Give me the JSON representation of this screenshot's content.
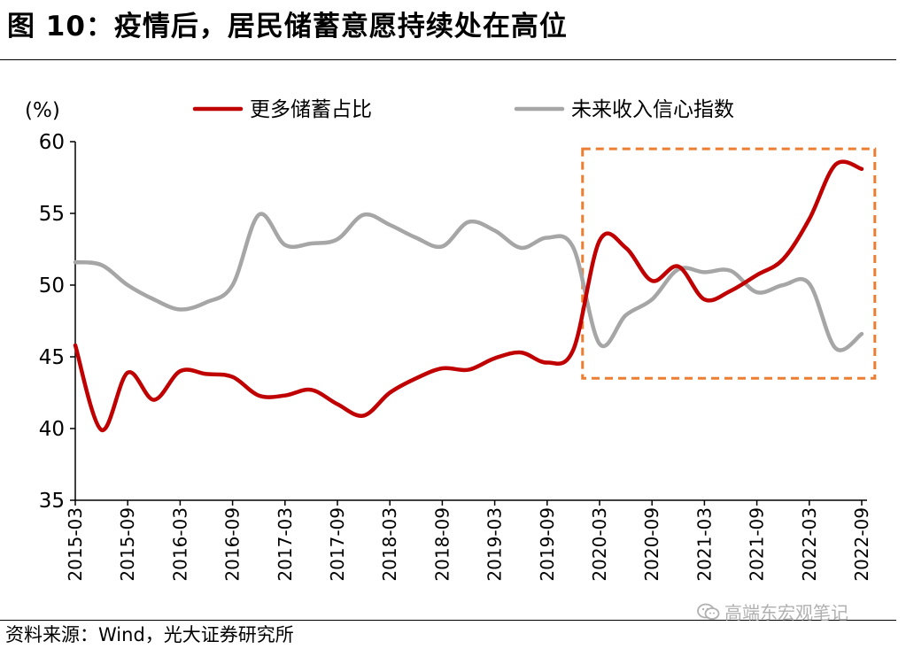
{
  "header": {
    "title": "图 10：疫情后，居民储蓄意愿持续处在高位"
  },
  "footer": {
    "source": "资料来源：Wind，光大证券研究所",
    "watermark": "高端东宏观笔记"
  },
  "colors": {
    "series1": "#c00000",
    "series2": "#a6a6a6",
    "highlight": "#ed7d31",
    "axis": "#000000"
  },
  "chart_data": {
    "type": "line",
    "title": "疫情后，居民储蓄意愿持续处在高位",
    "ylabel": "(%)",
    "xlabel": "",
    "ylim": [
      35,
      60
    ],
    "yticks": [
      35,
      40,
      45,
      50,
      55,
      60
    ],
    "xlim": [
      0,
      30
    ],
    "xticks": [
      {
        "label": "2015-03",
        "x": 0
      },
      {
        "label": "2015-09",
        "x": 2
      },
      {
        "label": "2016-03",
        "x": 4
      },
      {
        "label": "2016-09",
        "x": 6
      },
      {
        "label": "2017-03",
        "x": 8
      },
      {
        "label": "2017-09",
        "x": 10
      },
      {
        "label": "2018-03",
        "x": 12
      },
      {
        "label": "2018-09",
        "x": 14
      },
      {
        "label": "2019-03",
        "x": 16
      },
      {
        "label": "2019-09",
        "x": 18
      },
      {
        "label": "2020-03",
        "x": 20
      },
      {
        "label": "2020-09",
        "x": 22
      },
      {
        "label": "2021-03",
        "x": 24
      },
      {
        "label": "2021-09",
        "x": 26
      },
      {
        "label": "2022-03",
        "x": 28
      },
      {
        "label": "2022-09",
        "x": 30
      }
    ],
    "highlight_box": {
      "x_range": [
        19.35,
        30.5
      ],
      "y_range": [
        43.5,
        59.5
      ],
      "style": "dashed"
    },
    "series": [
      {
        "name": "更多储蓄占比",
        "color": "#c00000",
        "x": [
          0,
          1,
          2,
          3,
          4,
          5,
          6,
          7,
          8,
          9,
          10,
          11,
          12,
          13,
          14,
          15,
          16,
          17,
          18,
          19,
          20,
          21,
          22,
          23,
          24,
          25,
          26,
          27,
          28,
          29,
          30
        ],
        "values": [
          45.8,
          39.9,
          43.9,
          42.0,
          44.0,
          43.8,
          43.6,
          42.3,
          42.3,
          42.7,
          41.7,
          40.9,
          42.5,
          43.5,
          44.2,
          44.1,
          44.9,
          45.3,
          44.6,
          45.5,
          53.1,
          52.6,
          50.3,
          51.3,
          49.0,
          49.6,
          50.7,
          51.8,
          54.6,
          58.4,
          58.1
        ]
      },
      {
        "name": "未来收入信心指数",
        "color": "#a6a6a6",
        "x": [
          0,
          1,
          2,
          3,
          4,
          5,
          6,
          7,
          8,
          9,
          10,
          11,
          12,
          13,
          14,
          15,
          16,
          17,
          18,
          19,
          20,
          21,
          22,
          23,
          24,
          25,
          26,
          27,
          28,
          29,
          30
        ],
        "values": [
          51.6,
          51.4,
          50.0,
          49.0,
          48.3,
          48.8,
          50.0,
          54.9,
          52.8,
          52.9,
          53.2,
          54.9,
          54.2,
          53.3,
          52.7,
          54.4,
          53.8,
          52.6,
          53.3,
          52.6,
          45.9,
          47.9,
          49.0,
          51.1,
          50.9,
          51.0,
          49.5,
          50.0,
          50.1,
          45.6,
          46.6
        ]
      }
    ],
    "legend": {
      "position": "top"
    }
  }
}
